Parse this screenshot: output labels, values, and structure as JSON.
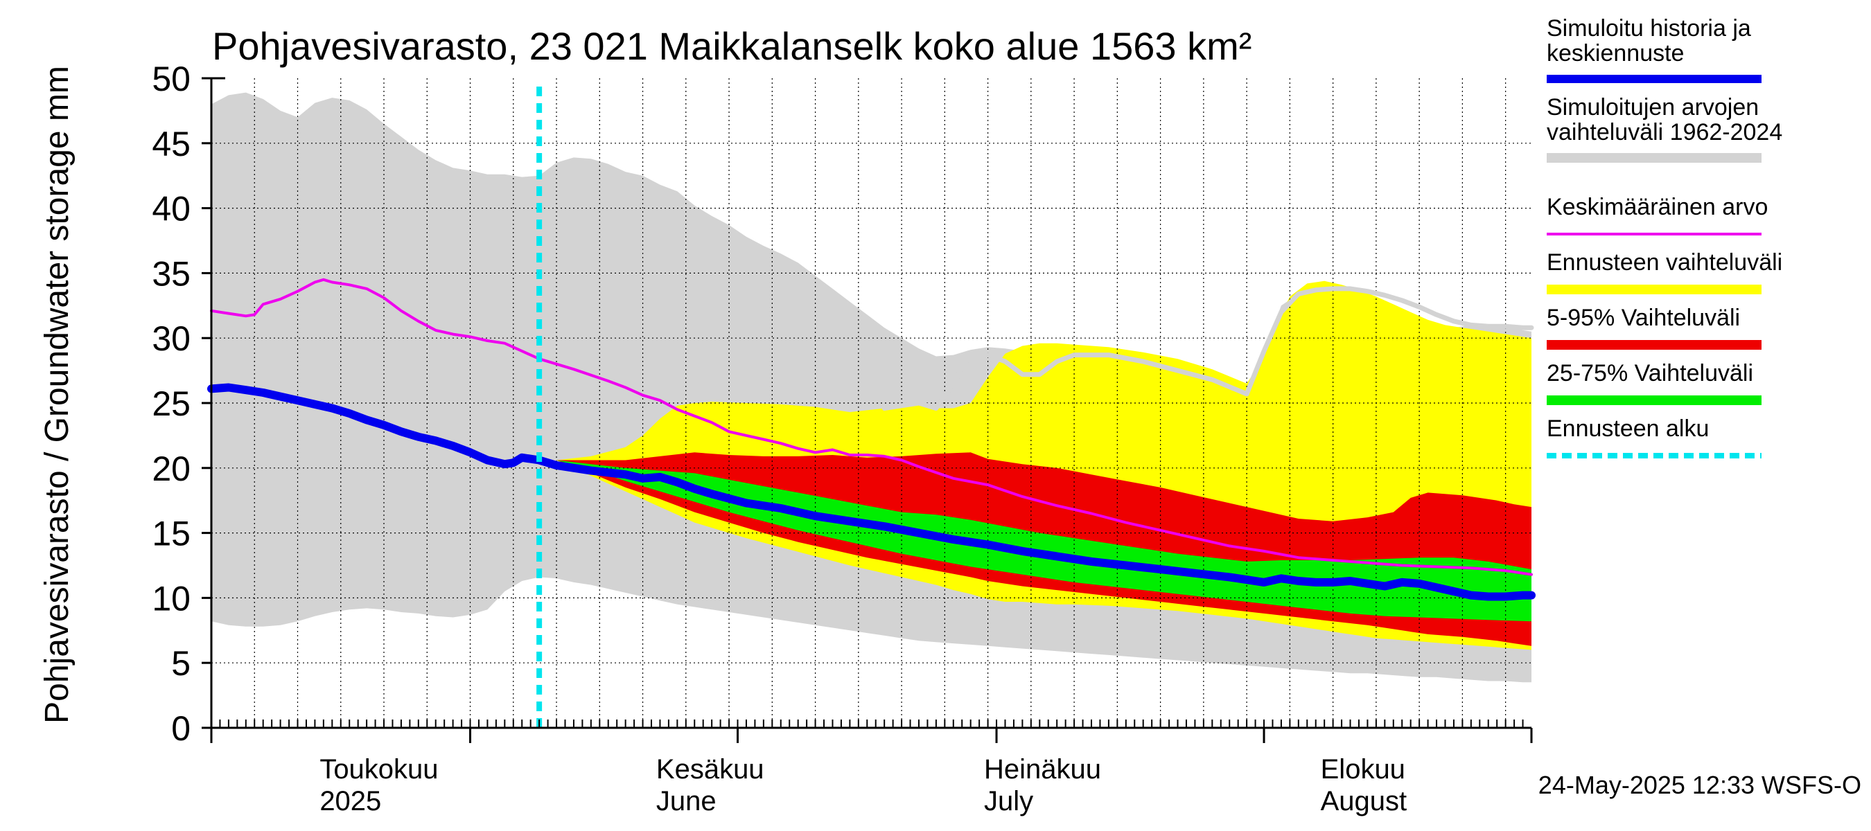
{
  "chart_data": {
    "type": "area",
    "title": "Pohjavesivarasto, 23 021 Maikkalanselk koko alue 1563 km²",
    "ylabel": "Pohjavesivarasto / Groundwater storage   mm",
    "ylim": [
      0,
      50
    ],
    "y_ticks": [
      "0",
      "5",
      "10",
      "15",
      "20",
      "25",
      "30",
      "35",
      "40",
      "45",
      "50"
    ],
    "x_unit": "days since 2025-04-01",
    "xlim": [
      0,
      153
    ],
    "month_labels": [
      {
        "top": "Toukokuu",
        "bottom": "2025",
        "x": 14
      },
      {
        "top": "Kesäkuu",
        "bottom": "June",
        "x": 53
      },
      {
        "top": "Heinäkuu",
        "bottom": "July",
        "x": 91
      },
      {
        "top": "Elokuu",
        "bottom": "August",
        "x": 130
      }
    ],
    "month_boundaries": [
      0,
      30,
      61,
      91,
      122,
      153
    ],
    "forecast_start_x": 38,
    "footer": "24-May-2025 12:33 WSFS-O",
    "legend": [
      {
        "label": "Simuloitu historia ja keskiennuste",
        "color": "#0000ee",
        "style": "thick"
      },
      {
        "label": "Simuloitujen arvojen vaihteluväli 1962-2024",
        "color": "#d3d3d3",
        "style": "band"
      },
      {
        "label": "Keskimääräinen arvo",
        "color": "#ee00ee",
        "style": "line"
      },
      {
        "label": "Ennusteen vaihteluväli",
        "color": "#ffff00",
        "style": "band"
      },
      {
        "label": "5-95% Vaihteluväli",
        "color": "#ee0000",
        "style": "band"
      },
      {
        "label": "25-75% Vaihteluväli",
        "color": "#00ee00",
        "style": "band"
      },
      {
        "label": "Ennusteen alku",
        "color": "#00e5ee",
        "style": "dashed"
      }
    ],
    "series": {
      "hist_range": {
        "x": [
          0,
          2,
          4,
          6,
          8,
          10,
          12,
          14,
          16,
          18,
          20,
          22,
          24,
          26,
          28,
          30,
          32,
          34,
          36,
          38,
          40,
          42,
          44,
          46,
          48,
          50,
          52,
          54,
          56,
          58,
          60,
          62,
          64,
          66,
          68,
          70,
          72,
          74,
          76,
          78,
          80,
          82,
          84,
          86,
          88,
          90,
          92,
          94,
          96,
          98,
          100,
          102,
          104,
          106,
          108,
          110,
          112,
          114,
          116,
          118,
          120,
          122,
          124,
          126,
          128,
          130,
          132,
          134,
          136,
          138,
          140,
          142,
          144,
          146,
          148,
          150,
          152,
          153
        ],
        "upper": [
          48,
          48.7,
          48.9,
          48.4,
          47.5,
          47,
          48.1,
          48.5,
          48.3,
          47.6,
          46.5,
          45.5,
          44.5,
          43.7,
          43.1,
          42.9,
          42.6,
          42.6,
          42.4,
          42.5,
          43.5,
          43.9,
          43.8,
          43.4,
          42.8,
          42.5,
          41.8,
          41.3,
          40.2,
          39.4,
          38.7,
          37.8,
          37.1,
          36.5,
          35.8,
          34.8,
          33.8,
          32.8,
          31.8,
          30.8,
          30,
          29.2,
          28.6,
          28.7,
          29.1,
          29.3,
          29.2,
          29,
          28.9,
          28.7,
          28.5,
          28.3,
          28,
          27.6,
          27.2,
          26.8,
          26.3,
          26,
          25.8,
          25.6,
          26,
          29,
          32.5,
          33.4,
          33.7,
          33.6,
          33.5,
          33,
          32.4,
          31.8,
          31.3,
          31,
          30.8,
          31,
          31,
          30.9,
          30.6,
          30.5
        ],
        "lower": [
          8.2,
          7.9,
          7.8,
          7.8,
          7.9,
          8.2,
          8.6,
          8.9,
          9.1,
          9.2,
          9.1,
          8.9,
          8.8,
          8.6,
          8.5,
          8.7,
          9.1,
          10.5,
          11.3,
          11.6,
          11.5,
          11.2,
          11,
          10.7,
          10.4,
          10.1,
          9.8,
          9.5,
          9.3,
          9.1,
          8.9,
          8.7,
          8.5,
          8.3,
          8.1,
          7.9,
          7.7,
          7.5,
          7.3,
          7.1,
          6.9,
          6.7,
          6.6,
          6.5,
          6.4,
          6.3,
          6.2,
          6.1,
          6,
          5.9,
          5.8,
          5.7,
          5.6,
          5.5,
          5.4,
          5.3,
          5.2,
          5.1,
          5,
          4.9,
          4.8,
          4.7,
          4.6,
          4.5,
          4.4,
          4.3,
          4.2,
          4.2,
          4.1,
          4,
          3.9,
          3.9,
          3.8,
          3.7,
          3.6,
          3.6,
          3.5,
          3.5
        ]
      },
      "forecast_range": {
        "x": [
          40,
          44,
          48,
          50,
          52,
          54,
          56,
          58,
          62,
          66,
          70,
          74,
          78,
          82,
          84,
          86,
          88,
          90,
          92,
          94,
          96,
          98,
          100,
          104,
          108,
          112,
          116,
          120,
          121,
          123,
          125,
          127,
          129,
          131,
          133,
          135,
          137,
          139,
          141,
          143,
          145,
          147,
          149,
          151,
          153
        ],
        "upper": [
          20.6,
          20.9,
          21.6,
          22.5,
          23.8,
          24.8,
          25,
          25.1,
          25,
          24.9,
          24.7,
          24.3,
          24.6,
          25,
          24.6,
          24.6,
          25,
          27,
          28.8,
          29.4,
          29.6,
          29.6,
          29.5,
          29.3,
          28.9,
          28.4,
          27.6,
          26.5,
          27.5,
          30.5,
          33.2,
          34.2,
          34.4,
          34.1,
          33.7,
          33.2,
          32.6,
          32,
          31.4,
          31,
          30.8,
          30.6,
          30.4,
          30.2,
          30
        ],
        "lower": [
          20.6,
          19.4,
          18.2,
          17.6,
          17,
          16.4,
          15.8,
          15.4,
          14.6,
          13.9,
          13.2,
          12.5,
          11.9,
          11.3,
          11,
          10.6,
          10.3,
          9.9,
          9.7,
          9.7,
          9.6,
          9.5,
          9.5,
          9.4,
          9.2,
          9,
          8.7,
          8.4,
          8.3,
          8.1,
          7.9,
          7.7,
          7.5,
          7.3,
          7.1,
          6.9,
          6.8,
          6.7,
          6.6,
          6.5,
          6.4,
          6.3,
          6.2,
          6.1,
          6
        ]
      },
      "p5_95": {
        "x": [
          40,
          44,
          48,
          52,
          56,
          60,
          64,
          68,
          72,
          76,
          80,
          84,
          88,
          90,
          94,
          98,
          102,
          106,
          110,
          114,
          118,
          122,
          126,
          130,
          134,
          137,
          139,
          141,
          145,
          149,
          151,
          153
        ],
        "upper": [
          20.6,
          20.6,
          20.6,
          20.9,
          21.2,
          21,
          20.9,
          20.9,
          21,
          20.8,
          20.9,
          21.1,
          21.2,
          20.7,
          20.3,
          20,
          19.5,
          19,
          18.5,
          17.9,
          17.3,
          16.7,
          16.1,
          15.9,
          16.2,
          16.6,
          17.7,
          18.1,
          17.9,
          17.5,
          17.2,
          17
        ],
        "lower": [
          20.6,
          19.6,
          18.5,
          17.6,
          16.6,
          15.8,
          15,
          14.3,
          13.7,
          13.1,
          12.6,
          12.1,
          11.6,
          11.3,
          10.9,
          10.6,
          10.3,
          10,
          9.7,
          9.4,
          9.1,
          8.8,
          8.5,
          8.2,
          7.9,
          7.6,
          7.4,
          7.2,
          7,
          6.7,
          6.5,
          6.3
        ]
      },
      "p25_75": {
        "x": [
          40,
          44,
          48,
          52,
          56,
          60,
          64,
          68,
          72,
          76,
          80,
          84,
          88,
          92,
          96,
          100,
          104,
          108,
          112,
          116,
          120,
          124,
          128,
          132,
          136,
          140,
          144,
          148,
          153
        ],
        "upper": [
          20.6,
          20.3,
          20,
          19.8,
          19.6,
          19.1,
          18.6,
          18.1,
          17.6,
          17.1,
          16.6,
          16.4,
          16,
          15.5,
          15,
          14.6,
          14.2,
          13.8,
          13.4,
          13.1,
          12.8,
          12.9,
          12.9,
          12.9,
          13,
          13.1,
          13.1,
          12.8,
          12.2
        ],
        "lower": [
          20.6,
          19.9,
          19,
          18.2,
          17.4,
          16.6,
          15.9,
          15.2,
          14.6,
          14,
          13.4,
          12.9,
          12.4,
          12,
          11.6,
          11.2,
          10.9,
          10.6,
          10.3,
          10,
          9.7,
          9.4,
          9.1,
          8.8,
          8.6,
          8.5,
          8.4,
          8.3,
          8.2
        ]
      },
      "simulated_mean": {
        "x": [
          0,
          2,
          4,
          6,
          8,
          10,
          12,
          14,
          16,
          18,
          20,
          22,
          24,
          26,
          28,
          30,
          32,
          34,
          35,
          36,
          38,
          40,
          44,
          48,
          50,
          52,
          54,
          56,
          58,
          62,
          66,
          70,
          74,
          78,
          82,
          86,
          90,
          94,
          98,
          102,
          106,
          110,
          114,
          118,
          122,
          124,
          126,
          128,
          130,
          132,
          134,
          136,
          138,
          140,
          142,
          144,
          146,
          148,
          150,
          152,
          153
        ],
        "y": [
          26.1,
          26.2,
          26,
          25.8,
          25.5,
          25.2,
          24.9,
          24.6,
          24.2,
          23.7,
          23.3,
          22.8,
          22.4,
          22.1,
          21.7,
          21.2,
          20.6,
          20.3,
          20.4,
          20.8,
          20.6,
          20.2,
          19.8,
          19.5,
          19.2,
          19.3,
          18.9,
          18.4,
          18,
          17.3,
          16.9,
          16.3,
          15.9,
          15.5,
          15,
          14.5,
          14.1,
          13.6,
          13.2,
          12.8,
          12.5,
          12.2,
          11.9,
          11.6,
          11.2,
          11.5,
          11.3,
          11.2,
          11.2,
          11.3,
          11.1,
          10.9,
          11.2,
          11.1,
          10.8,
          10.5,
          10.2,
          10.1,
          10.1,
          10.2,
          10.2
        ]
      },
      "long_term_mean": {
        "x": [
          0,
          2,
          4,
          5,
          6,
          8,
          10,
          12,
          13,
          14,
          16,
          18,
          20,
          22,
          24,
          26,
          28,
          30,
          32,
          34,
          38,
          42,
          46,
          48,
          50,
          52,
          54,
          56,
          58,
          60,
          62,
          64,
          66,
          68,
          70,
          72,
          74,
          76,
          78,
          80,
          82,
          86,
          90,
          94,
          98,
          102,
          106,
          110,
          114,
          118,
          122,
          126,
          130,
          134,
          138,
          142,
          146,
          150,
          153
        ],
        "y": [
          32.1,
          31.9,
          31.7,
          31.8,
          32.6,
          33,
          33.6,
          34.3,
          34.5,
          34.3,
          34.1,
          33.8,
          33.1,
          32.1,
          31.3,
          30.6,
          30.3,
          30.1,
          29.8,
          29.6,
          28.4,
          27.6,
          26.7,
          26.2,
          25.6,
          25.2,
          24.5,
          24,
          23.5,
          22.8,
          22.5,
          22.2,
          21.9,
          21.5,
          21.2,
          21.4,
          21,
          21,
          20.9,
          20.6,
          20.1,
          19.2,
          18.7,
          17.8,
          17.1,
          16.5,
          15.8,
          15.2,
          14.6,
          14,
          13.6,
          13.1,
          12.9,
          12.7,
          12.5,
          12.4,
          12.3,
          12.1,
          11.8
        ]
      },
      "upper_envelope_line": {
        "x": [
          78,
          82,
          84,
          86,
          88,
          90,
          92,
          94,
          96,
          98,
          100,
          104,
          108,
          112,
          116,
          120,
          122,
          124,
          126,
          128,
          130,
          132,
          134,
          136,
          138,
          140,
          142,
          144,
          146,
          148,
          150,
          152,
          153
        ],
        "y": [
          24.6,
          25,
          24.6,
          26.5,
          28.8,
          28.7,
          28.2,
          27.2,
          27.2,
          28.2,
          28.7,
          28.7,
          28.2,
          27.5,
          26.8,
          25.7,
          29,
          32,
          33.4,
          33.7,
          33.8,
          33.8,
          33.6,
          33.3,
          32.9,
          32.4,
          31.8,
          31.3,
          31,
          30.9,
          30.9,
          30.8,
          30.8
        ]
      }
    }
  }
}
